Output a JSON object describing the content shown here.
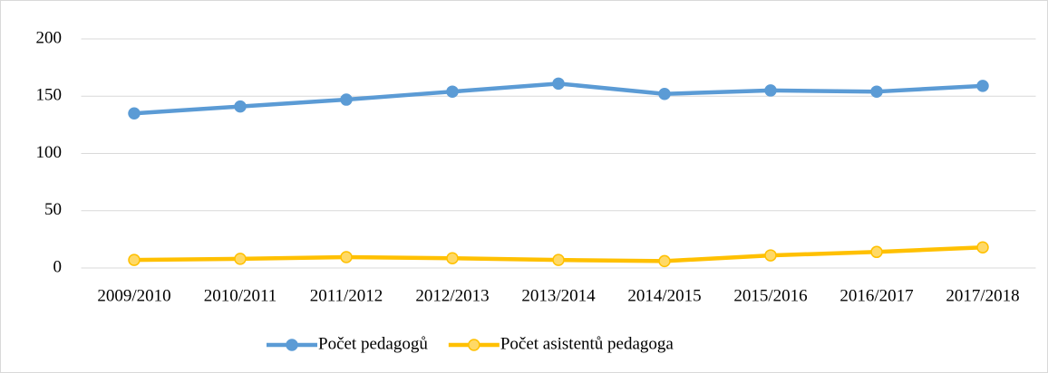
{
  "chart_data": {
    "type": "line",
    "categories": [
      "2009/2010",
      "2010/2011",
      "2011/2012",
      "2012/2013",
      "2013/2014",
      "2014/2015",
      "2015/2016",
      "2016/2017",
      "2017/2018"
    ],
    "series": [
      {
        "name": "Počet pedagogů",
        "color": "#5b9bd5",
        "values": [
          135,
          141,
          147,
          154,
          161,
          152,
          155,
          154,
          159
        ]
      },
      {
        "name": "Počet asistentů pedagoga",
        "color": "#ffc000",
        "values": [
          7,
          8,
          9.5,
          8.5,
          7,
          6,
          11,
          14,
          18
        ]
      }
    ],
    "ylim": [
      0,
      200
    ],
    "yticks": [
      0,
      50,
      100,
      150,
      200
    ],
    "grid": true,
    "legend": "bottom"
  }
}
